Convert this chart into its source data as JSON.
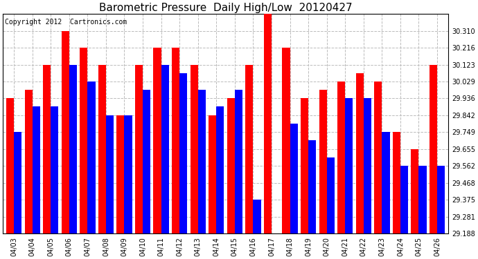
{
  "title": "Barometric Pressure  Daily High/Low  20120427",
  "copyright": "Copyright 2012  Cartronics.com",
  "dates": [
    "04/03",
    "04/04",
    "04/05",
    "04/06",
    "04/07",
    "04/08",
    "04/09",
    "04/10",
    "04/11",
    "04/12",
    "04/13",
    "04/14",
    "04/15",
    "04/16",
    "04/17",
    "04/18",
    "04/19",
    "04/20",
    "04/21",
    "04/22",
    "04/23",
    "04/24",
    "04/25",
    "04/26"
  ],
  "highs": [
    29.936,
    29.983,
    30.123,
    30.31,
    30.216,
    30.123,
    29.842,
    30.123,
    30.216,
    30.216,
    30.123,
    29.842,
    29.936,
    30.123,
    30.403,
    30.216,
    29.936,
    29.983,
    30.029,
    30.076,
    30.029,
    29.749,
    29.655,
    30.123
  ],
  "lows": [
    29.749,
    29.891,
    29.891,
    30.123,
    30.029,
    29.842,
    29.842,
    29.983,
    30.123,
    30.076,
    29.983,
    29.891,
    29.983,
    29.375,
    29.188,
    29.796,
    29.703,
    29.608,
    29.936,
    29.936,
    29.749,
    29.562,
    29.562,
    29.562
  ],
  "ylim_min": 29.188,
  "ylim_max": 30.403,
  "yticks": [
    29.188,
    29.281,
    29.375,
    29.468,
    29.562,
    29.655,
    29.749,
    29.842,
    29.936,
    30.029,
    30.123,
    30.216,
    30.31
  ],
  "high_color": "#ff0000",
  "low_color": "#0000ff",
  "bg_color": "#ffffff",
  "grid_color": "#bbbbbb",
  "title_fontsize": 11,
  "copyright_fontsize": 7
}
